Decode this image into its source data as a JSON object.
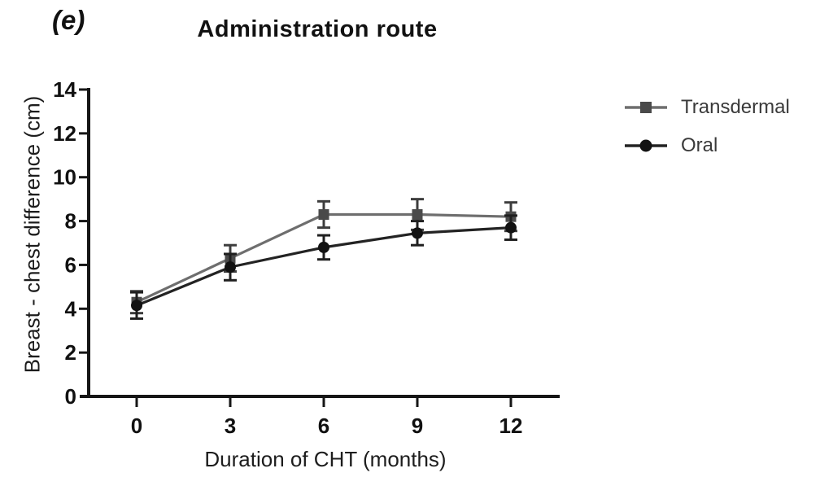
{
  "figure": {
    "panel_label": "(e)",
    "title": "Administration route"
  },
  "chart_data": {
    "type": "line",
    "title": "Administration route",
    "xlabel": "Duration of CHT (months)",
    "ylabel": "Breast - chest difference (cm)",
    "x": [
      0,
      3,
      6,
      9,
      12
    ],
    "x_tick_labels": [
      "0",
      "3",
      "6",
      "9",
      "12"
    ],
    "xlim": [
      0,
      12
    ],
    "ylim": [
      0,
      14
    ],
    "y_ticks": [
      0,
      2,
      4,
      6,
      8,
      10,
      12,
      14
    ],
    "grid": false,
    "error_bars": true,
    "legend_position": "right",
    "series": [
      {
        "name": "Transdermal",
        "marker": "square",
        "line_color": "#6e6e6e",
        "marker_color": "#4a4a4a",
        "error_color": "#3d3d3d",
        "values": [
          4.3,
          6.3,
          8.3,
          8.3,
          8.2
        ],
        "errors": [
          0.5,
          0.6,
          0.6,
          0.7,
          0.65
        ]
      },
      {
        "name": "Oral",
        "marker": "circle",
        "line_color": "#232323",
        "marker_color": "#121212",
        "error_color": "#1f1f1f",
        "values": [
          4.15,
          5.9,
          6.8,
          7.45,
          7.7
        ],
        "errors": [
          0.6,
          0.6,
          0.55,
          0.55,
          0.55
        ]
      }
    ]
  }
}
